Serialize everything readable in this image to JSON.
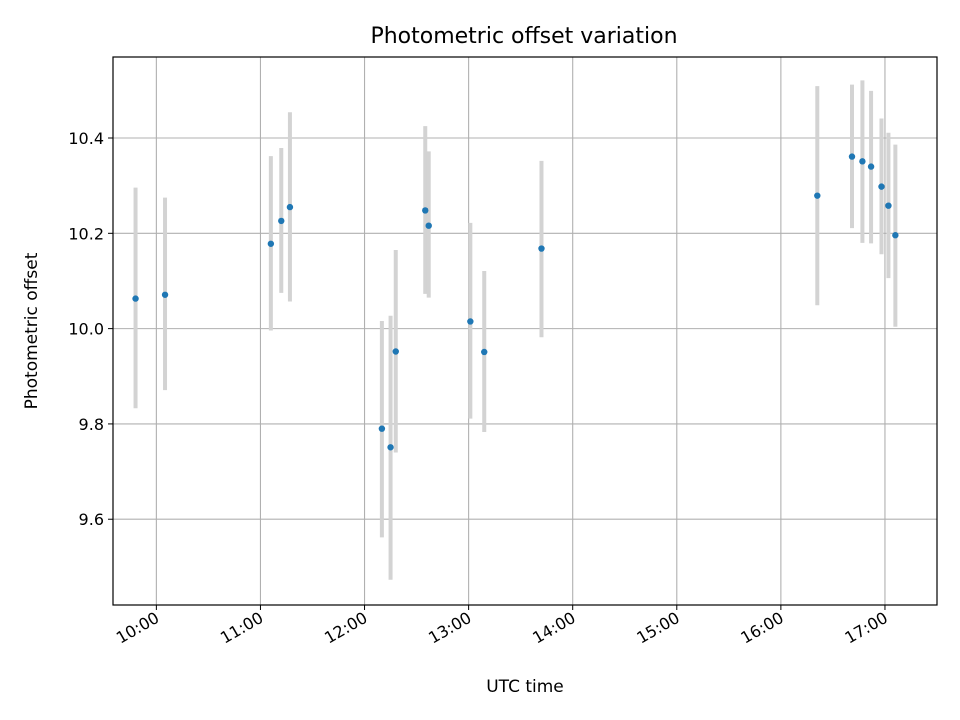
{
  "chart_data": {
    "type": "scatter",
    "title": "Photometric offset variation",
    "xlabel": "UTC time",
    "ylabel": "Photometric offset",
    "xlim": [
      "09:35",
      "17:30"
    ],
    "ylim": [
      9.42,
      10.57
    ],
    "grid": true,
    "x_ticks": [
      "10:00",
      "11:00",
      "12:00",
      "13:00",
      "14:00",
      "15:00",
      "16:00",
      "17:00"
    ],
    "y_ticks": [
      "9.6",
      "9.8",
      "10.0",
      "10.2",
      "10.4"
    ],
    "point_color": "#1f77b4",
    "errorbar_color": "#d3d3d3",
    "points": [
      {
        "x": "09:48",
        "y": 10.063,
        "yerr_low": 9.833,
        "yerr_high": 10.296
      },
      {
        "x": "10:05",
        "y": 10.071,
        "yerr_low": 9.871,
        "yerr_high": 10.275
      },
      {
        "x": "11:06",
        "y": 10.178,
        "yerr_low": 9.996,
        "yerr_high": 10.362
      },
      {
        "x": "11:12",
        "y": 10.226,
        "yerr_low": 10.075,
        "yerr_high": 10.379
      },
      {
        "x": "11:17",
        "y": 10.255,
        "yerr_low": 10.057,
        "yerr_high": 10.454
      },
      {
        "x": "12:10",
        "y": 9.79,
        "yerr_low": 9.562,
        "yerr_high": 10.016
      },
      {
        "x": "12:15",
        "y": 9.751,
        "yerr_low": 9.473,
        "yerr_high": 10.027
      },
      {
        "x": "12:18",
        "y": 9.952,
        "yerr_low": 9.74,
        "yerr_high": 10.165
      },
      {
        "x": "12:35",
        "y": 10.248,
        "yerr_low": 10.073,
        "yerr_high": 10.425
      },
      {
        "x": "12:37",
        "y": 10.216,
        "yerr_low": 10.065,
        "yerr_high": 10.372
      },
      {
        "x": "13:01",
        "y": 10.015,
        "yerr_low": 9.811,
        "yerr_high": 10.222
      },
      {
        "x": "13:09",
        "y": 9.951,
        "yerr_low": 9.783,
        "yerr_high": 10.121
      },
      {
        "x": "13:42",
        "y": 10.168,
        "yerr_low": 9.982,
        "yerr_high": 10.352
      },
      {
        "x": "16:21",
        "y": 10.279,
        "yerr_low": 10.049,
        "yerr_high": 10.509
      },
      {
        "x": "16:41",
        "y": 10.361,
        "yerr_low": 10.211,
        "yerr_high": 10.512
      },
      {
        "x": "16:47",
        "y": 10.351,
        "yerr_low": 10.18,
        "yerr_high": 10.521
      },
      {
        "x": "16:52",
        "y": 10.34,
        "yerr_low": 10.179,
        "yerr_high": 10.499
      },
      {
        "x": "16:58",
        "y": 10.298,
        "yerr_low": 10.156,
        "yerr_high": 10.441
      },
      {
        "x": "17:02",
        "y": 10.258,
        "yerr_low": 10.106,
        "yerr_high": 10.411
      },
      {
        "x": "17:06",
        "y": 10.196,
        "yerr_low": 10.004,
        "yerr_high": 10.386
      }
    ]
  }
}
